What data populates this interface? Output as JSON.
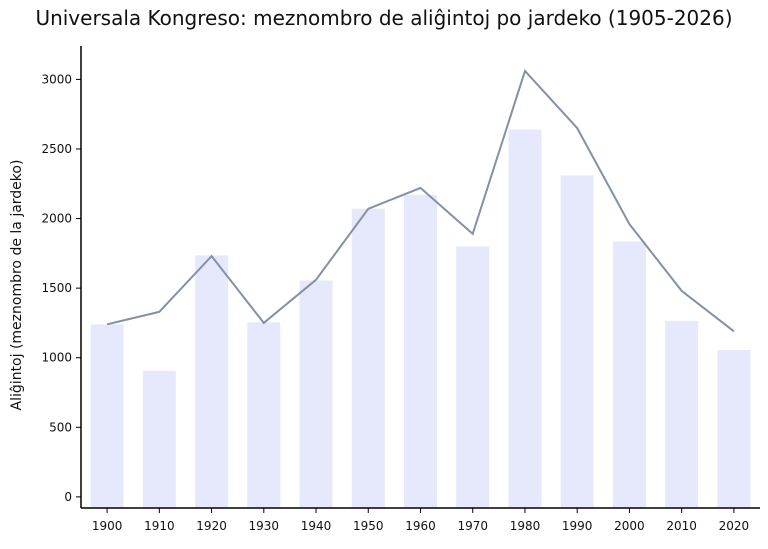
{
  "chart_data": {
    "type": "bar",
    "title": "Universala Kongreso: meznombro de aliĝintoj po jardeko (1905-2026)",
    "xlabel": "",
    "ylabel": "Aliĝintoj (meznombro de la jardeko)",
    "categories": [
      "1900",
      "1910",
      "1920",
      "1930",
      "1940",
      "1950",
      "1960",
      "1970",
      "1980",
      "1990",
      "2000",
      "2010",
      "2020"
    ],
    "series": [
      {
        "type": "bar",
        "values": [
          1240,
          905,
          1735,
          1255,
          1555,
          2070,
          2170,
          1800,
          2640,
          2310,
          1835,
          1265,
          1055
        ]
      },
      {
        "type": "line",
        "values": [
          1240,
          1330,
          1730,
          1250,
          1560,
          2070,
          2220,
          1890,
          3060,
          2650,
          1960,
          1480,
          1190
        ]
      }
    ],
    "y_ticks": [
      0,
      500,
      1000,
      1500,
      2000,
      2500,
      3000
    ],
    "ylim": [
      -80,
      3240
    ],
    "grid": false,
    "legend": "none",
    "colors": {
      "bar": "#e6e8fb",
      "line": "#8390a6",
      "axis": "#000000"
    }
  }
}
